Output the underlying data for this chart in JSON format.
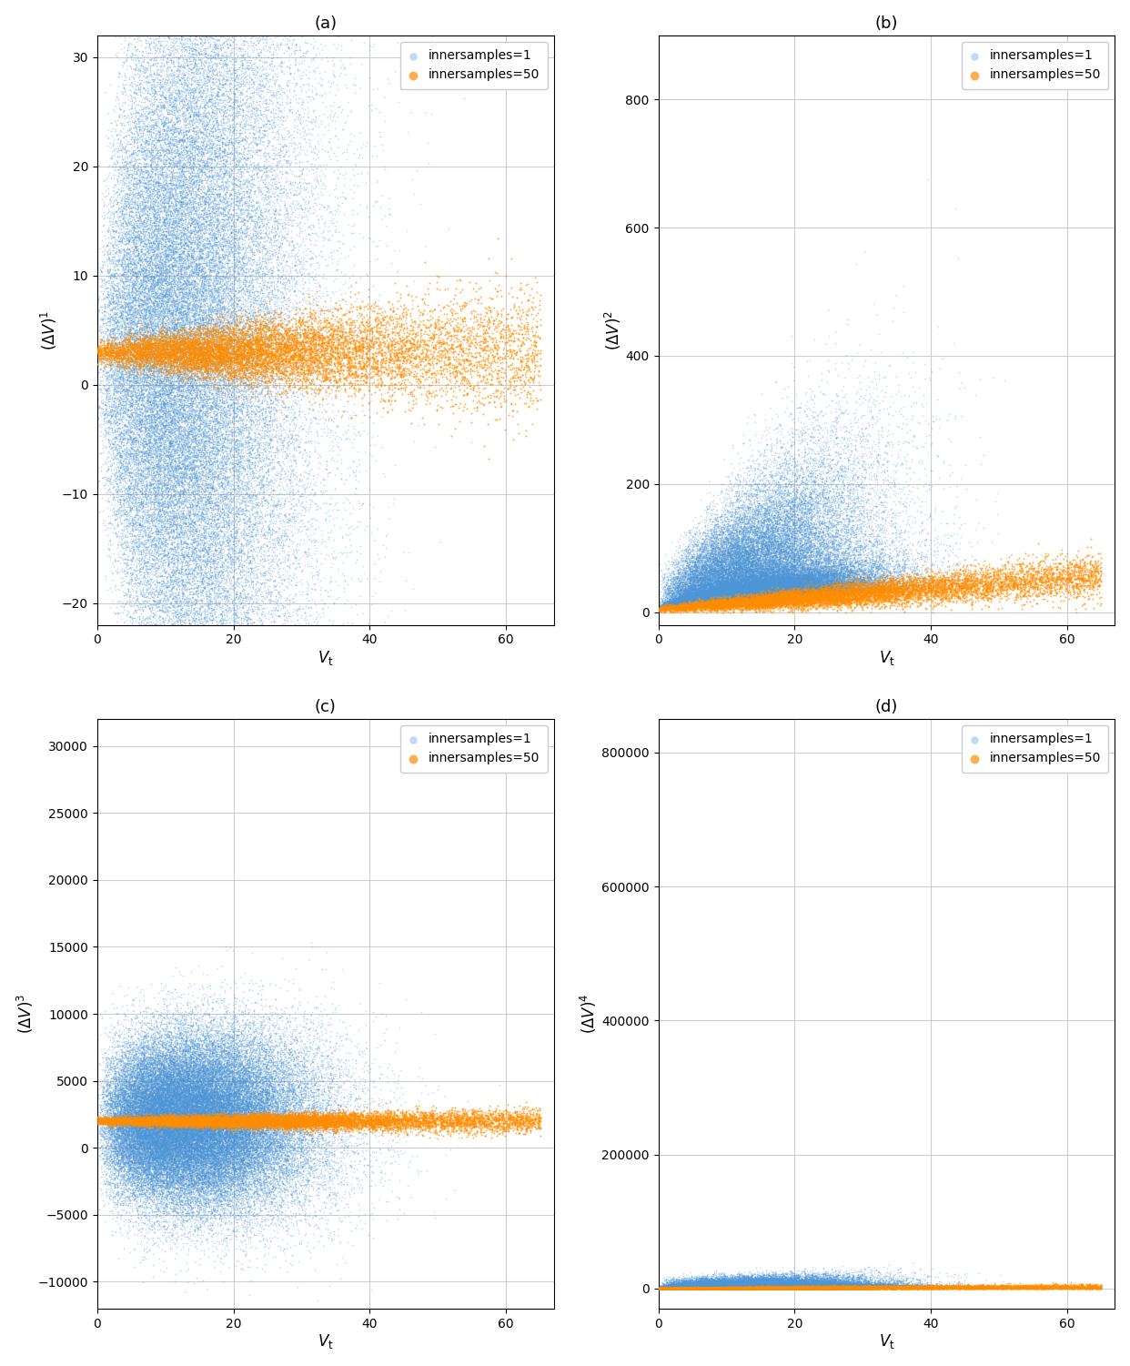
{
  "title_a": "(a)",
  "title_b": "(b)",
  "title_c": "(c)",
  "title_d": "(d)",
  "xlabel": "$V_\\mathrm{t}$",
  "ylabel_a": "$(\\Delta V)^1$",
  "ylabel_b": "$(\\Delta V)^2$",
  "ylabel_c": "$(\\Delta V)^3$",
  "ylabel_d": "$(\\Delta V)^4$",
  "legend_label_blue": "innersamples=1",
  "legend_label_orange": "innersamples=50",
  "color_blue": "#4C96D7",
  "color_orange": "#FF8C00",
  "marker": "o",
  "marker_size_blue": 1.5,
  "marker_size_orange": 2.0,
  "alpha_blue": 0.35,
  "alpha_orange": 0.7,
  "n_blue": 60000,
  "n_orange": 10000,
  "xlim": [
    0,
    67
  ],
  "ylim_a": [
    -22,
    32
  ],
  "ylim_b": [
    -20,
    900
  ],
  "ylim_c": [
    -12000,
    32000
  ],
  "ylim_d": [
    -30000,
    850000
  ],
  "xticks": [
    0,
    20,
    40,
    60
  ],
  "yticks_a": [
    -20,
    -10,
    0,
    10,
    20,
    30
  ],
  "yticks_b": [
    0,
    200,
    400,
    600,
    800
  ],
  "yticks_c": [
    -10000,
    -5000,
    0,
    5000,
    10000,
    15000,
    20000,
    25000,
    30000
  ],
  "yticks_d": [
    0,
    200000,
    400000,
    600000,
    800000
  ],
  "grid": true,
  "seed": 42
}
